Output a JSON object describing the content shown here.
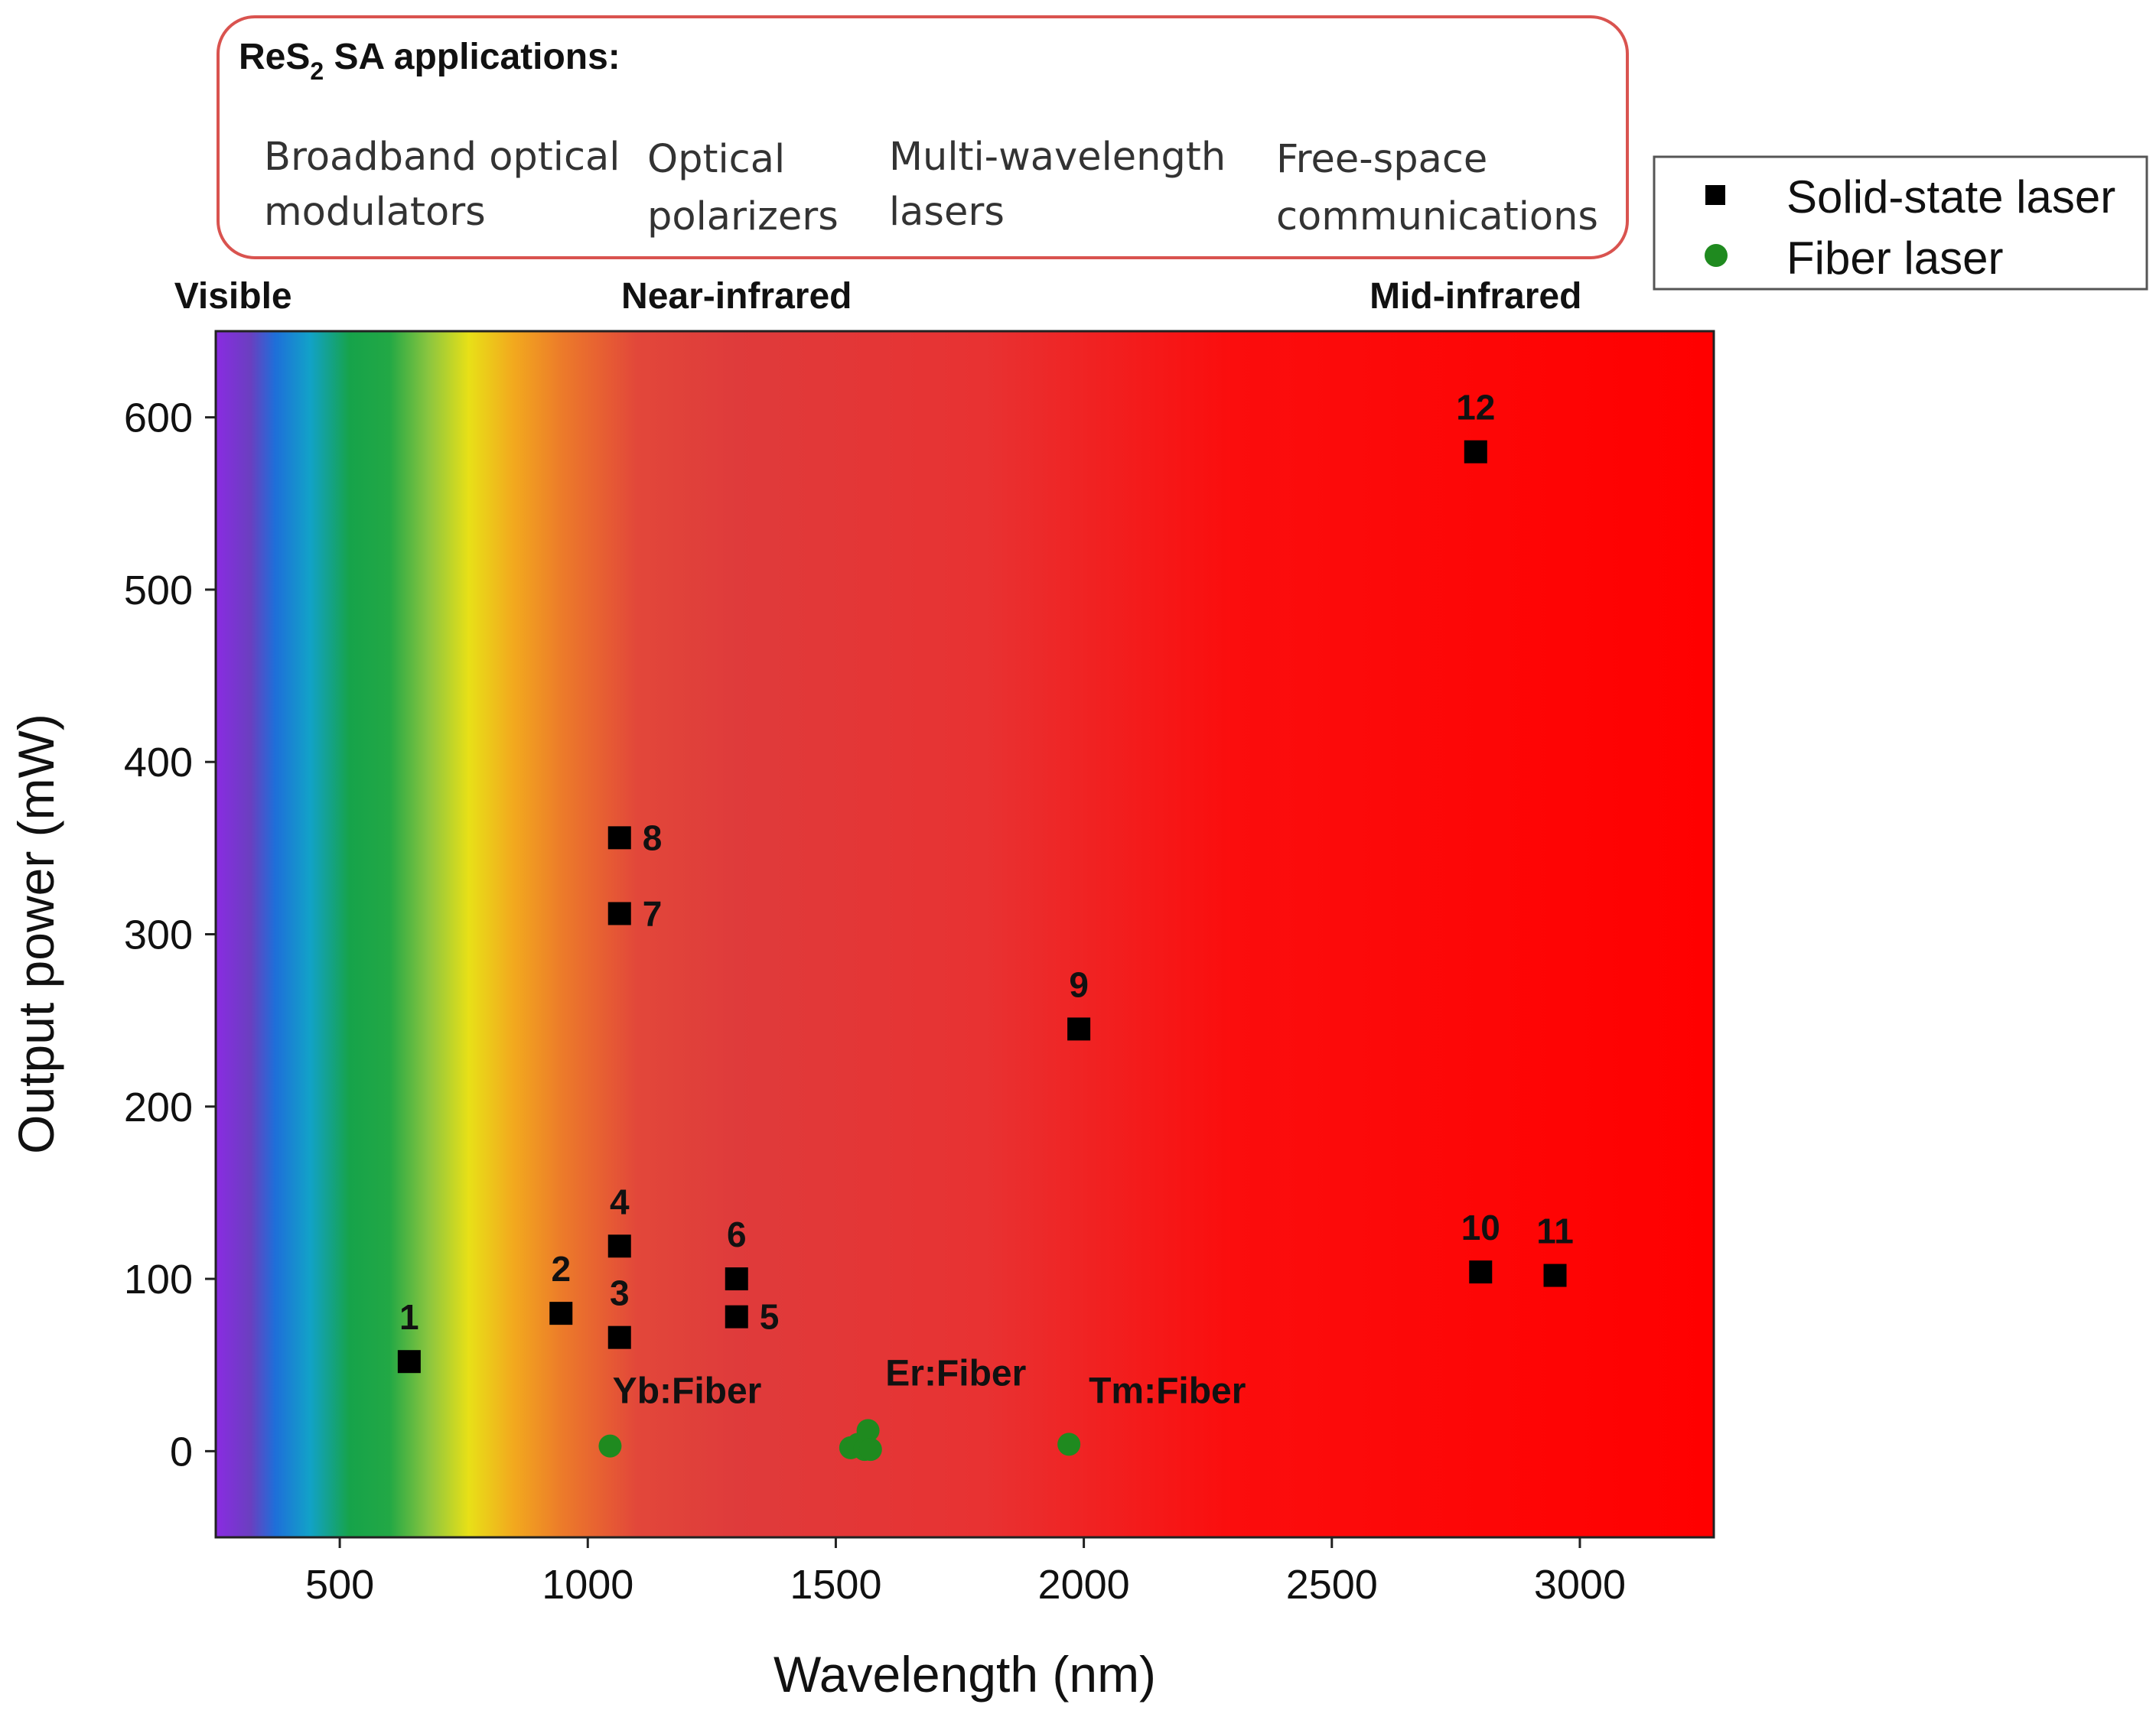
{
  "chart_data": {
    "type": "scatter",
    "title": "",
    "xlabel": "Wavelength (nm)",
    "ylabel": "Output power (mW)",
    "xlim": [
      250,
      3270
    ],
    "ylim": [
      -50,
      650
    ],
    "xticks": [
      500,
      1000,
      1500,
      2000,
      2500,
      3000
    ],
    "yticks": [
      0,
      100,
      200,
      300,
      400,
      500,
      600
    ],
    "grid": false,
    "legend_position": "top-right",
    "background_spectrum": [
      {
        "nm": 250,
        "color": "#8a2be2"
      },
      {
        "nm": 320,
        "color": "#6a3fc0"
      },
      {
        "nm": 370,
        "color": "#1e6fd9"
      },
      {
        "nm": 440,
        "color": "#12a2c8"
      },
      {
        "nm": 520,
        "color": "#16a34a"
      },
      {
        "nm": 600,
        "color": "#22a845"
      },
      {
        "nm": 680,
        "color": "#8cc63f"
      },
      {
        "nm": 760,
        "color": "#e8e017"
      },
      {
        "nm": 850,
        "color": "#f2a91e"
      },
      {
        "nm": 950,
        "color": "#ec7a2a"
      },
      {
        "nm": 1100,
        "color": "#e2473a"
      },
      {
        "nm": 1300,
        "color": "#df3b3b"
      },
      {
        "nm": 1800,
        "color": "#e83232"
      },
      {
        "nm": 2300,
        "color": "#fb0d0d"
      },
      {
        "nm": 3270,
        "color": "#ff0000"
      }
    ],
    "series": [
      {
        "name": "Solid-state laser",
        "marker": "square",
        "color": "#000000",
        "points": [
          {
            "label": "1",
            "x": 640,
            "y": 52
          },
          {
            "label": "2",
            "x": 946,
            "y": 80
          },
          {
            "label": "3",
            "x": 1064,
            "y": 66
          },
          {
            "label": "4",
            "x": 1064,
            "y": 119
          },
          {
            "label": "5",
            "x": 1300,
            "y": 78
          },
          {
            "label": "6",
            "x": 1300,
            "y": 100
          },
          {
            "label": "7",
            "x": 1064,
            "y": 312
          },
          {
            "label": "8",
            "x": 1064,
            "y": 356
          },
          {
            "label": "9",
            "x": 1990,
            "y": 245
          },
          {
            "label": "10",
            "x": 2800,
            "y": 104
          },
          {
            "label": "11",
            "x": 2950,
            "y": 102
          },
          {
            "label": "12",
            "x": 2790,
            "y": 580
          }
        ]
      },
      {
        "name": "Fiber laser",
        "marker": "circle",
        "color": "#1f8a1f",
        "points": [
          {
            "x": 1045,
            "y": 3
          },
          {
            "x": 1530,
            "y": 2
          },
          {
            "x": 1545,
            "y": 4
          },
          {
            "x": 1558,
            "y": 1
          },
          {
            "x": 1565,
            "y": 12
          },
          {
            "x": 1570,
            "y": 1
          },
          {
            "x": 1970,
            "y": 4
          }
        ]
      }
    ],
    "annotations": [
      {
        "text": "Yb:Fiber",
        "x": 1050,
        "y": 28
      },
      {
        "text": "Er:Fiber",
        "x": 1600,
        "y": 38
      },
      {
        "text": "Tm:Fiber",
        "x": 2010,
        "y": 28
      }
    ],
    "regions": [
      {
        "text": "Visible",
        "x": 285
      },
      {
        "text": "Near-infrared",
        "x": 1300
      },
      {
        "text": "Mid-infrared",
        "x": 2790
      }
    ]
  },
  "applications_box": {
    "title_main": "ReS",
    "title_sub": "2",
    "title_rest": " SA applications:",
    "border_color": "#d9534f",
    "items": [
      {
        "line1": "Broadband optical",
        "line2": "modulators"
      },
      {
        "line1": "Optical",
        "line2": "polarizers"
      },
      {
        "line1": "Multi-wavelength",
        "line2": "lasers"
      },
      {
        "line1": "Free-space",
        "line2": "communications"
      }
    ]
  }
}
